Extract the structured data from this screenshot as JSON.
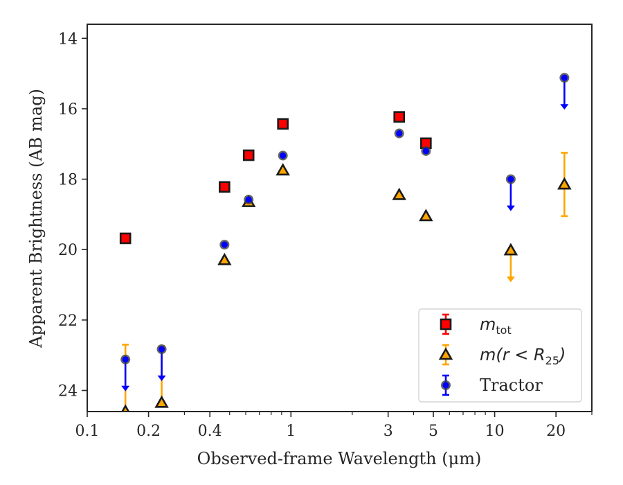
{
  "chart_data": {
    "type": "scatter",
    "xlabel": "Observed-frame Wavelength (μm)",
    "ylabel": "Apparent Brightness (AB mag)",
    "xscale": "log",
    "xlim": [
      0.1,
      30
    ],
    "ylim": [
      24.6,
      13.6
    ],
    "y_inverted": true,
    "xticks": [
      {
        "value": 0.1,
        "label": "0.1"
      },
      {
        "value": 0.2,
        "label": "0.2"
      },
      {
        "value": 0.4,
        "label": "0.4"
      },
      {
        "value": 1,
        "label": "1"
      },
      {
        "value": 3,
        "label": "3"
      },
      {
        "value": 5,
        "label": "5"
      },
      {
        "value": 10,
        "label": "10"
      },
      {
        "value": 20,
        "label": "20"
      }
    ],
    "yticks": [
      {
        "value": 14,
        "label": "14"
      },
      {
        "value": 16,
        "label": "16"
      },
      {
        "value": 18,
        "label": "18"
      },
      {
        "value": 20,
        "label": "20"
      },
      {
        "value": 22,
        "label": "22"
      },
      {
        "value": 24,
        "label": "24"
      }
    ],
    "legend_position": "lower-right",
    "series": [
      {
        "name": "m_tot",
        "marker": "square",
        "color": "#ff0000",
        "errorbar_color": "#ff0000",
        "points": [
          {
            "x": 0.154,
            "y": 19.68
          },
          {
            "x": 0.472,
            "y": 18.22
          },
          {
            "x": 0.62,
            "y": 17.32
          },
          {
            "x": 0.913,
            "y": 16.43
          },
          {
            "x": 3.4,
            "y": 16.23
          },
          {
            "x": 4.6,
            "y": 16.98
          }
        ]
      },
      {
        "name": "m(r < R25)",
        "marker": "triangle",
        "color": "#ffa500",
        "errorbar_color": "#ffa500",
        "points": [
          {
            "x": 0.154,
            "y": 24.6,
            "upper_limit": true,
            "err": 1.9
          },
          {
            "x": 0.232,
            "y": 24.35,
            "upper_limit": true,
            "err": 1.6
          },
          {
            "x": 0.472,
            "y": 20.3
          },
          {
            "x": 0.62,
            "y": 18.65
          },
          {
            "x": 0.913,
            "y": 17.75
          },
          {
            "x": 3.4,
            "y": 18.45
          },
          {
            "x": 4.6,
            "y": 19.05
          },
          {
            "x": 12.0,
            "y": 20.02,
            "upper_limit": true
          },
          {
            "x": 22.0,
            "y": 18.15,
            "err": 0.9
          }
        ]
      },
      {
        "name": "Tractor",
        "marker": "circle",
        "color": "#0000ff",
        "errorbar_color": "#0000ff",
        "points": [
          {
            "x": 0.154,
            "y": 23.12,
            "upper_limit": true
          },
          {
            "x": 0.232,
            "y": 22.83,
            "upper_limit": true
          },
          {
            "x": 0.472,
            "y": 19.86
          },
          {
            "x": 0.62,
            "y": 18.58
          },
          {
            "x": 0.913,
            "y": 17.33
          },
          {
            "x": 3.4,
            "y": 16.7
          },
          {
            "x": 4.6,
            "y": 17.2
          },
          {
            "x": 12.0,
            "y": 18.0,
            "upper_limit": true
          },
          {
            "x": 22.0,
            "y": 15.12,
            "upper_limit": true
          }
        ]
      }
    ],
    "legend": [
      {
        "label": "m_tot",
        "math_base": "m",
        "math_sub": "tot"
      },
      {
        "label": "m(r < R25)",
        "math_base": "m(r < R",
        "math_sub": "25",
        "math_tail": ")"
      },
      {
        "label": "Tractor"
      }
    ]
  }
}
